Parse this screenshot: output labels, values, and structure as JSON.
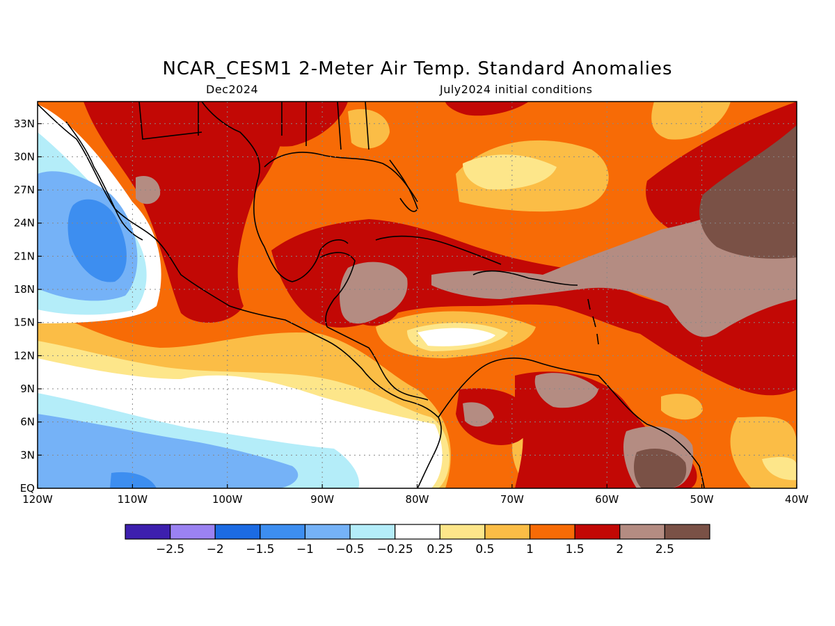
{
  "title": "NCAR_CESM1 2-Meter Air Temp. Standard Anomalies",
  "subtitle_left": "Dec2024",
  "subtitle_right": "July2024 initial conditions",
  "lon_ticks": [
    {
      "lon": -120,
      "label": "120W"
    },
    {
      "lon": -110,
      "label": "110W"
    },
    {
      "lon": -100,
      "label": "100W"
    },
    {
      "lon": -90,
      "label": "90W"
    },
    {
      "lon": -80,
      "label": "80W"
    },
    {
      "lon": -70,
      "label": "70W"
    },
    {
      "lon": -60,
      "label": "60W"
    },
    {
      "lon": -50,
      "label": "50W"
    },
    {
      "lon": -40,
      "label": "40W"
    }
  ],
  "lat_ticks": [
    {
      "lat": 0,
      "label": "EQ"
    },
    {
      "lat": 3,
      "label": "3N"
    },
    {
      "lat": 6,
      "label": "6N"
    },
    {
      "lat": 9,
      "label": "9N"
    },
    {
      "lat": 12,
      "label": "12N"
    },
    {
      "lat": 15,
      "label": "15N"
    },
    {
      "lat": 18,
      "label": "18N"
    },
    {
      "lat": 21,
      "label": "21N"
    },
    {
      "lat": 24,
      "label": "24N"
    },
    {
      "lat": 27,
      "label": "27N"
    },
    {
      "lat": 30,
      "label": "30N"
    },
    {
      "lat": 33,
      "label": "33N"
    }
  ],
  "colorbar": {
    "colors": [
      "#3d1fae",
      "#9b82f2",
      "#1c6be3",
      "#3d8ef0",
      "#75b2f7",
      "#b4edf9",
      "#ffffff",
      "#fde68a",
      "#fbbd46",
      "#f76b06",
      "#c20805",
      "#b48c82",
      "#7a5146"
    ],
    "labels": [
      "-2.5",
      "-2",
      "-1.5",
      "-1",
      "-0.5",
      "-0.25",
      "0.25",
      "0.5",
      "1",
      "1.5",
      "2",
      "2.5"
    ]
  },
  "colors": {
    "ocean_default": "#f76b06",
    "coastline": "#000000"
  }
}
